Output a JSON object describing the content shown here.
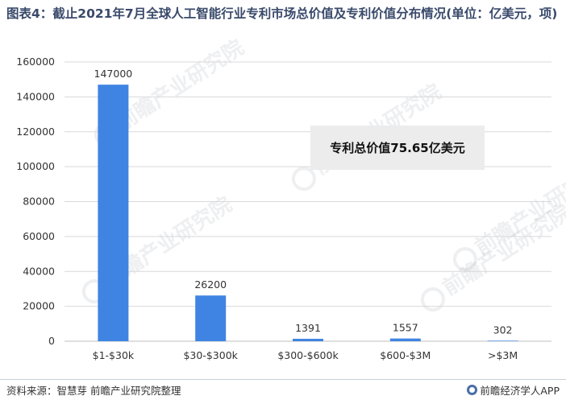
{
  "header": {
    "title": "图表4：截止2021年7月全球人工智能行业专利市场总价值及专利价值分布情况(单位：亿美元，项)"
  },
  "annotation": {
    "text": "专利总价值75.65亿美元"
  },
  "watermark": {
    "text": "前瞻产业研究院"
  },
  "footer": {
    "source": "资料来源：智慧芽 前瞻产业研究院整理",
    "brand": "前瞻经济学人APP",
    "brand_icon": "qianzhan-logo-icon"
  },
  "colors": {
    "bar": "#3f84e2",
    "grid": "#d9d9d9",
    "title": "#3a4a6b"
  },
  "chart_data": {
    "type": "bar",
    "title": "",
    "xlabel": "",
    "ylabel": "",
    "categories": [
      "$1-$30k",
      "$30-$300k",
      "$300-$600k",
      "$600-$3M",
      ">$3M"
    ],
    "values": [
      147000,
      26200,
      1391,
      1557,
      302
    ],
    "data_labels": [
      "147000",
      "26200",
      "1391",
      "1557",
      "302"
    ],
    "ylim": [
      0,
      160000
    ],
    "yticks": [
      0,
      20000,
      40000,
      60000,
      80000,
      100000,
      120000,
      140000,
      160000
    ],
    "grid": true,
    "legend": "none"
  }
}
